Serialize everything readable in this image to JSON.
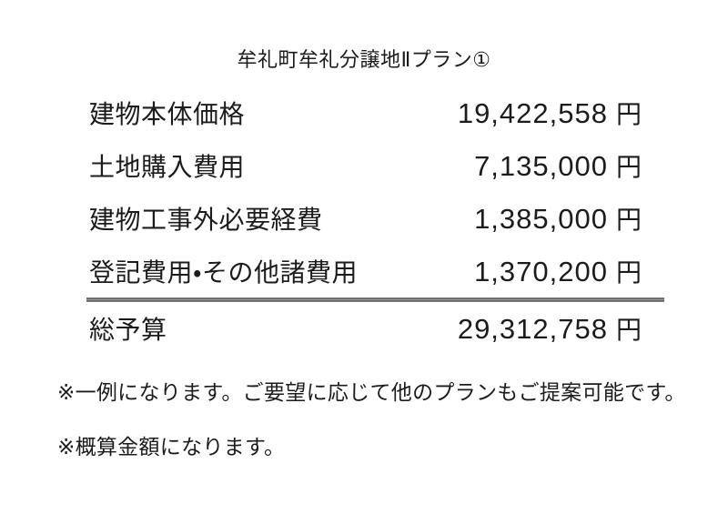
{
  "page": {
    "title": "牟礼町牟礼分譲地Ⅱプラン①",
    "background_color": "#ffffff",
    "text_color": "#1c1c1c",
    "separator_color": "#505050"
  },
  "table": {
    "rows": [
      {
        "label": "建物本体価格",
        "amount": "19,422,558",
        "unit": "円"
      },
      {
        "label": "土地購入費用",
        "amount": "7,135,000",
        "unit": "円"
      },
      {
        "label": "建物工事外必要経費",
        "amount": "1,385,000",
        "unit": "円"
      },
      {
        "label": "登記費用・その他諸費用",
        "amount": "1,370,200",
        "unit": "円"
      }
    ],
    "total": {
      "label": "総予算",
      "amount": "29,312,758",
      "unit": "円"
    }
  },
  "footnotes": [
    "※一例になります。ご要望に応じて他のプランもご提案可能です。",
    "※概算金額になります。"
  ]
}
